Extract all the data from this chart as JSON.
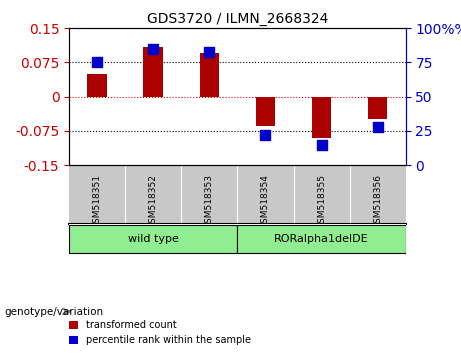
{
  "title": "GDS3720 / ILMN_2668324",
  "samples": [
    "GSM518351",
    "GSM518352",
    "GSM518353",
    "GSM518354",
    "GSM518355",
    "GSM518356"
  ],
  "transformed_count": [
    0.05,
    0.11,
    0.095,
    -0.065,
    -0.09,
    -0.05
  ],
  "percentile_rank": [
    75,
    85,
    83,
    22,
    15,
    28
  ],
  "bar_color": "#AA0000",
  "dot_color": "#0000CC",
  "ylim_left": [
    -0.15,
    0.15
  ],
  "ylim_right": [
    0,
    100
  ],
  "yticks_left": [
    -0.15,
    -0.075,
    0,
    0.075,
    0.15
  ],
  "yticks_right": [
    0,
    25,
    50,
    75,
    100
  ],
  "left_axis_color": "#CC0000",
  "right_axis_color": "#0000CC",
  "groups": [
    {
      "label": "wild type",
      "indices": [
        0,
        1,
        2
      ],
      "color": "#90EE90"
    },
    {
      "label": "RORalpha1delDE",
      "indices": [
        3,
        4,
        5
      ],
      "color": "#90EE90"
    }
  ],
  "group_label_prefix": "genotype/variation",
  "legend_items": [
    {
      "label": "transformed count",
      "color": "#AA0000"
    },
    {
      "label": "percentile rank within the sample",
      "color": "#0000CC"
    }
  ],
  "bar_width": 0.35,
  "dot_size": 60,
  "hline_color": "#CC0000",
  "hline_style": "dotted",
  "grid_style": "dotted",
  "grid_color": "black",
  "bg_plot": "#FFFFFF",
  "bg_tick_area": "#C8C8C8"
}
